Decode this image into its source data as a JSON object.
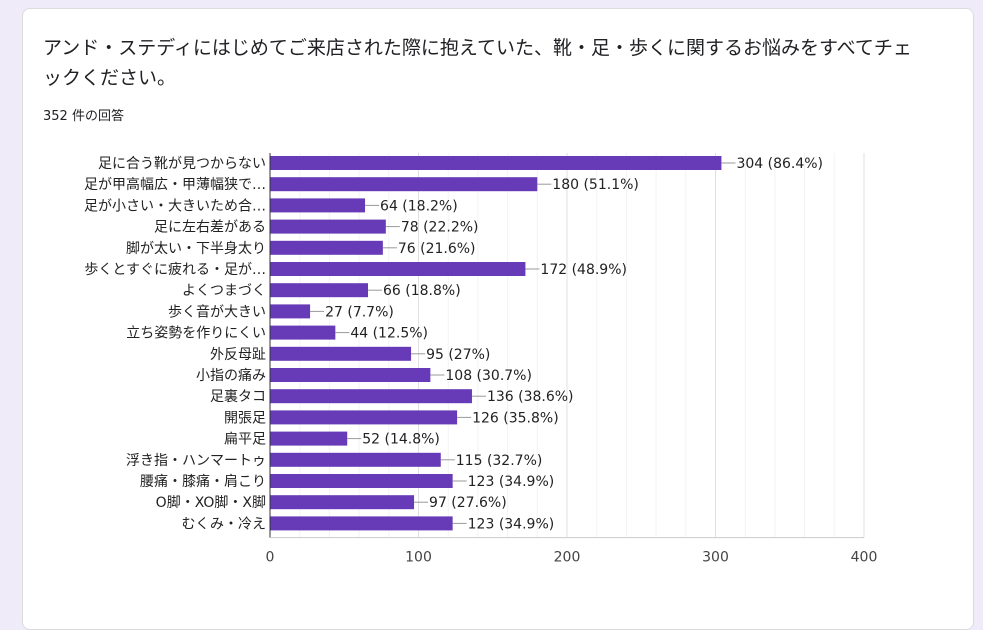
{
  "question": "アンド・ステディにはじめてご来店された際に抱えていた、靴・足・歩くに関するお悩みをすべてチェックください。",
  "response_count": "352 件の回答",
  "chart_data": {
    "type": "bar",
    "orientation": "horizontal",
    "categories": [
      "足に合う靴が見つからない",
      "足が甲高幅広・甲薄幅狭で…",
      "足が小さい・大きいため合…",
      "足に左右差がある",
      "脚が太い・下半身太り",
      "歩くとすぐに疲れる・足が…",
      "よくつまづく",
      "歩く音が大きい",
      "立ち姿勢を作りにくい",
      "外反母趾",
      "小指の痛み",
      "足裏タコ",
      "開張足",
      "扁平足",
      "浮き指・ハンマートゥ",
      "腰痛・膝痛・肩こり",
      "O脚・XO脚・X脚",
      "むくみ・冷え"
    ],
    "values": [
      304,
      180,
      64,
      78,
      76,
      172,
      66,
      27,
      44,
      95,
      108,
      136,
      126,
      52,
      115,
      123,
      97,
      123
    ],
    "data_labels": [
      "304 (86.4%)",
      "180 (51.1%)",
      "64 (18.2%)",
      "78 (22.2%)",
      "76 (21.6%)",
      "172 (48.9%)",
      "66 (18.8%)",
      "27 (7.7%)",
      "44 (12.5%)",
      "95 (27%)",
      "108 (30.7%)",
      "136 (38.6%)",
      "126 (35.8%)",
      "52 (14.8%)",
      "115 (32.7%)",
      "123 (34.9%)",
      "97 (27.6%)",
      "123 (34.9%)"
    ],
    "xlim": [
      0,
      400
    ],
    "xticks": [
      "0",
      "100",
      "200",
      "300",
      "400"
    ],
    "grid": true,
    "bar_color": "#673ab7"
  }
}
